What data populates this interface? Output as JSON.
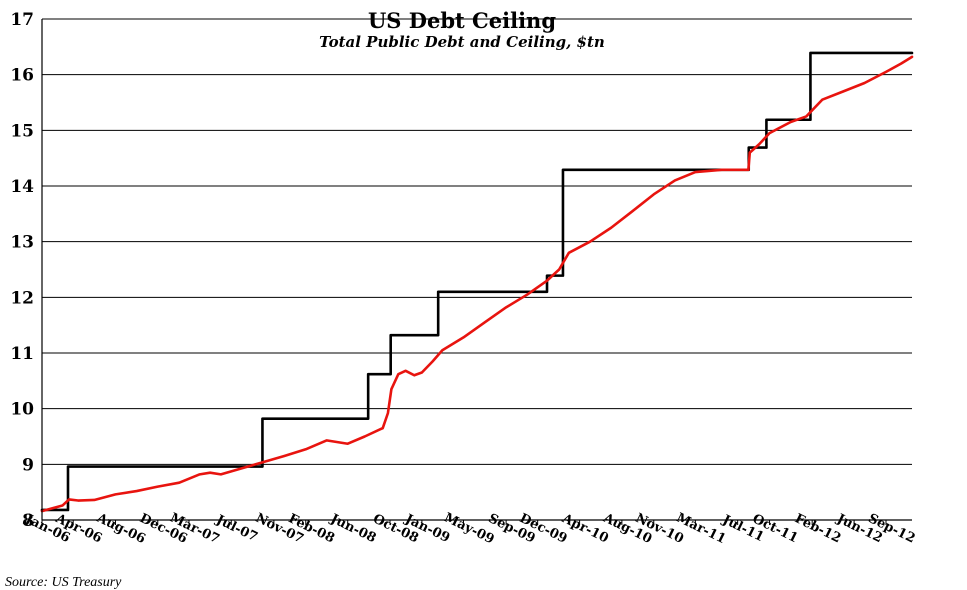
{
  "chart_data": {
    "type": "line",
    "title": "US Debt Ceiling",
    "subtitle": "Total Public Debt and Ceiling, $tn",
    "source": "Source: US Treasury",
    "ylim": [
      8,
      17
    ],
    "yticks": [
      8,
      9,
      10,
      11,
      12,
      13,
      14,
      15,
      16,
      17
    ],
    "grid": true,
    "xlim": [
      "2006-01-01",
      "2012-11-15"
    ],
    "xticks": [
      {
        "label": "Jan-06",
        "date": "2006-01-01"
      },
      {
        "label": "Apr-06",
        "date": "2006-04-01"
      },
      {
        "label": "Aug-06",
        "date": "2006-08-01"
      },
      {
        "label": "Dec-06",
        "date": "2006-12-01"
      },
      {
        "label": "Mar-07",
        "date": "2007-03-01"
      },
      {
        "label": "Jul-07",
        "date": "2007-07-01"
      },
      {
        "label": "Nov-07",
        "date": "2007-11-01"
      },
      {
        "label": "Feb-08",
        "date": "2008-02-01"
      },
      {
        "label": "Jun-08",
        "date": "2008-06-01"
      },
      {
        "label": "Oct-08",
        "date": "2008-10-01"
      },
      {
        "label": "Jan-09",
        "date": "2009-01-01"
      },
      {
        "label": "May-09",
        "date": "2009-05-01"
      },
      {
        "label": "Sep-09",
        "date": "2009-09-01"
      },
      {
        "label": "Dec-09",
        "date": "2009-12-01"
      },
      {
        "label": "Apr-10",
        "date": "2010-04-01"
      },
      {
        "label": "Aug-10",
        "date": "2010-08-01"
      },
      {
        "label": "Nov-10",
        "date": "2010-11-01"
      },
      {
        "label": "Mar-11",
        "date": "2011-03-01"
      },
      {
        "label": "Jul-11",
        "date": "2011-07-01"
      },
      {
        "label": "Oct-11",
        "date": "2011-10-01"
      },
      {
        "label": "Feb-12",
        "date": "2012-02-01"
      },
      {
        "label": "Jun-12",
        "date": "2012-06-01"
      },
      {
        "label": "Sep-12",
        "date": "2012-09-01"
      }
    ],
    "series": [
      {
        "color": "#000000",
        "step": true,
        "points": [
          [
            "2006-01-01",
            8.18
          ],
          [
            "2006-03-17",
            8.96
          ],
          [
            "2007-09-29",
            9.82
          ],
          [
            "2008-07-30",
            10.62
          ],
          [
            "2008-10-03",
            11.32
          ],
          [
            "2009-02-17",
            12.1
          ],
          [
            "2009-12-28",
            12.39
          ],
          [
            "2010-02-12",
            14.29
          ],
          [
            "2011-08-02",
            14.69
          ],
          [
            "2011-09-22",
            15.19
          ],
          [
            "2012-01-27",
            16.39
          ],
          [
            "2012-11-15",
            16.39
          ]
        ]
      },
      {
        "color": "#e8140f",
        "step": false,
        "points": [
          [
            "2006-01-01",
            8.16
          ],
          [
            "2006-03-01",
            8.26
          ],
          [
            "2006-03-20",
            8.37
          ],
          [
            "2006-04-15",
            8.35
          ],
          [
            "2006-06-01",
            8.36
          ],
          [
            "2006-08-01",
            8.46
          ],
          [
            "2006-10-01",
            8.52
          ],
          [
            "2006-12-01",
            8.6
          ],
          [
            "2007-02-01",
            8.67
          ],
          [
            "2007-04-01",
            8.82
          ],
          [
            "2007-05-01",
            8.85
          ],
          [
            "2007-06-01",
            8.82
          ],
          [
            "2007-08-01",
            8.93
          ],
          [
            "2007-10-01",
            9.04
          ],
          [
            "2007-12-01",
            9.15
          ],
          [
            "2008-02-01",
            9.27
          ],
          [
            "2008-04-01",
            9.43
          ],
          [
            "2008-06-01",
            9.37
          ],
          [
            "2008-07-20",
            9.5
          ],
          [
            "2008-09-10",
            9.65
          ],
          [
            "2008-09-25",
            9.92
          ],
          [
            "2008-10-05",
            10.35
          ],
          [
            "2008-10-25",
            10.62
          ],
          [
            "2008-11-15",
            10.68
          ],
          [
            "2008-12-10",
            10.6
          ],
          [
            "2009-01-01",
            10.65
          ],
          [
            "2009-02-01",
            10.85
          ],
          [
            "2009-03-01",
            11.05
          ],
          [
            "2009-05-01",
            11.28
          ],
          [
            "2009-07-01",
            11.55
          ],
          [
            "2009-09-01",
            11.82
          ],
          [
            "2009-11-01",
            12.05
          ],
          [
            "2009-12-28",
            12.3
          ],
          [
            "2010-02-01",
            12.5
          ],
          [
            "2010-03-01",
            12.8
          ],
          [
            "2010-05-01",
            13.0
          ],
          [
            "2010-07-01",
            13.25
          ],
          [
            "2010-09-01",
            13.55
          ],
          [
            "2010-11-01",
            13.85
          ],
          [
            "2011-01-01",
            14.1
          ],
          [
            "2011-03-01",
            14.25
          ],
          [
            "2011-05-16",
            14.29
          ],
          [
            "2011-08-01",
            14.29
          ],
          [
            "2011-08-05",
            14.6
          ],
          [
            "2011-09-01",
            14.75
          ],
          [
            "2011-10-01",
            14.95
          ],
          [
            "2011-12-01",
            15.15
          ],
          [
            "2012-01-15",
            15.25
          ],
          [
            "2012-03-01",
            15.55
          ],
          [
            "2012-05-01",
            15.7
          ],
          [
            "2012-07-01",
            15.85
          ],
          [
            "2012-09-01",
            16.05
          ],
          [
            "2012-10-15",
            16.2
          ],
          [
            "2012-11-15",
            16.32
          ]
        ]
      }
    ]
  }
}
